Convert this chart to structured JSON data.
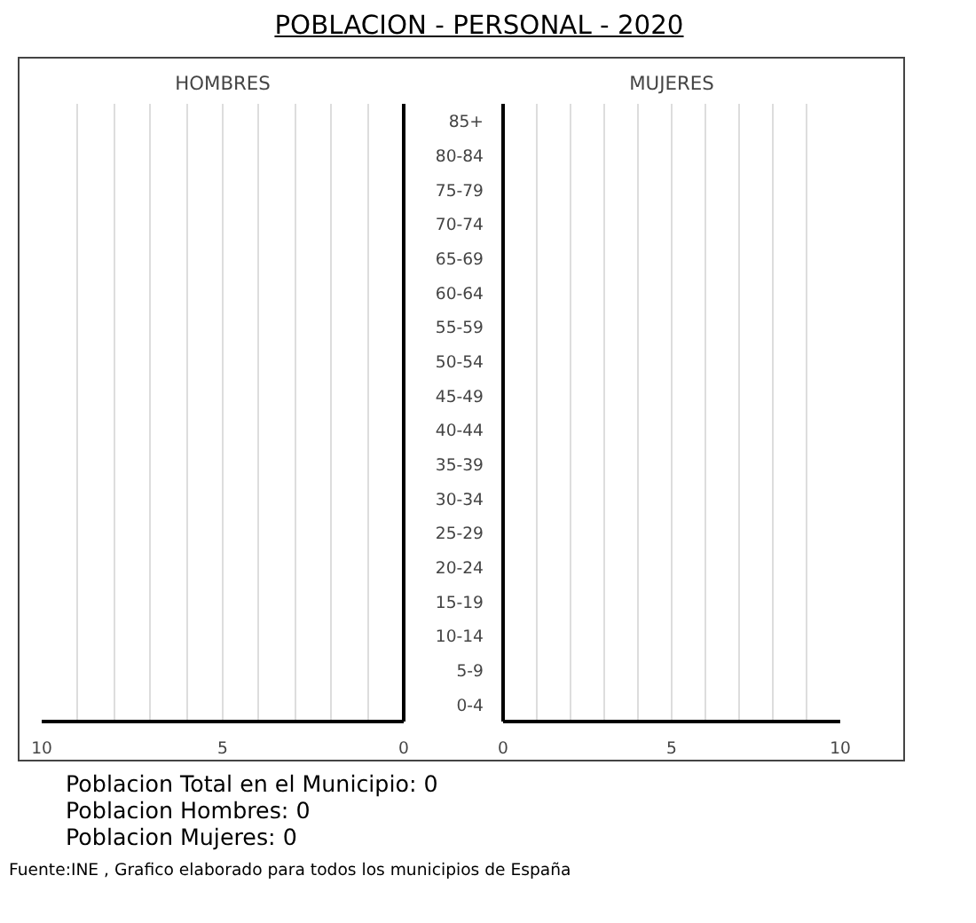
{
  "chart_data": [
    {
      "type": "other",
      "title": "POBLACION - PERSONAL - 2020",
      "annotations": [
        "Poblacion Total en el Municipio: 0",
        "Poblacion Hombres: 0",
        "Poblacion Mujeres: 0",
        "Fuente:INE , Grafico elaborado para todos los municipios de España"
      ]
    },
    {
      "type": "bar",
      "orientation": "horizontal",
      "title": "HOMBRES",
      "values": [
        0,
        0,
        0,
        0,
        0,
        0,
        0,
        0,
        0,
        0,
        0,
        0,
        0,
        0,
        0,
        0,
        0,
        0
      ],
      "xlim": [
        10,
        0
      ],
      "xticks": [
        10,
        {
          "value": 9,
          "label": null
        },
        {
          "value": 8,
          "label": null
        },
        {
          "value": 7,
          "label": null
        },
        {
          "value": 6,
          "label": null
        },
        5,
        {
          "value": 4,
          "label": null
        },
        {
          "value": 3,
          "label": null
        },
        {
          "value": 2,
          "label": null
        },
        {
          "value": 1,
          "label": null
        },
        0
      ],
      "grid": "x",
      "tick_labels": "x"
    },
    {
      "type": "bar",
      "orientation": "horizontal",
      "title": "MUJERES",
      "categories": [
        "85+",
        "80-84",
        "75-79",
        "70-74",
        "65-69",
        "60-64",
        "55-59",
        "50-54",
        "45-49",
        "40-44",
        "35-39",
        "30-34",
        "25-29",
        "20-24",
        "15-19",
        "10-14",
        "5-9",
        "0-4"
      ],
      "values": [
        0,
        0,
        0,
        0,
        0,
        0,
        0,
        0,
        0,
        0,
        0,
        0,
        0,
        0,
        0,
        0,
        0,
        0
      ],
      "xlim": [
        0,
        10
      ],
      "xticks": [
        0,
        {
          "value": 1,
          "label": null
        },
        {
          "value": 2,
          "label": null
        },
        {
          "value": 3,
          "label": null
        },
        {
          "value": 4,
          "label": null
        },
        5,
        {
          "value": 6,
          "label": null
        },
        {
          "value": 7,
          "label": null
        },
        {
          "value": 8,
          "label": null
        },
        {
          "value": 9,
          "label": null
        },
        10
      ],
      "grid": "x"
    }
  ]
}
